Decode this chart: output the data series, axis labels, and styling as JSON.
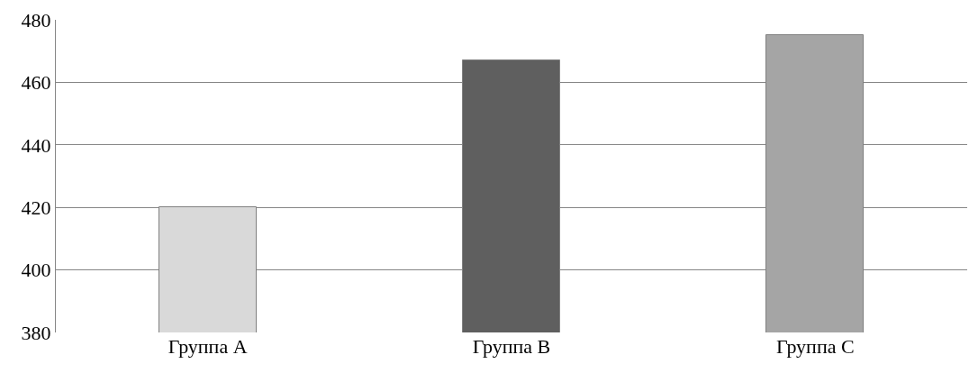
{
  "chart_data": {
    "type": "bar",
    "categories": [
      "Группа A",
      "Группа B",
      "Группа C"
    ],
    "values": [
      420,
      467,
      475
    ],
    "colors": [
      "#d9d9d9",
      "#5f5f5f",
      "#a5a5a5"
    ],
    "ylim": [
      380,
      480
    ],
    "yticks": [
      380,
      400,
      420,
      440,
      460,
      480
    ],
    "grid": "y"
  }
}
